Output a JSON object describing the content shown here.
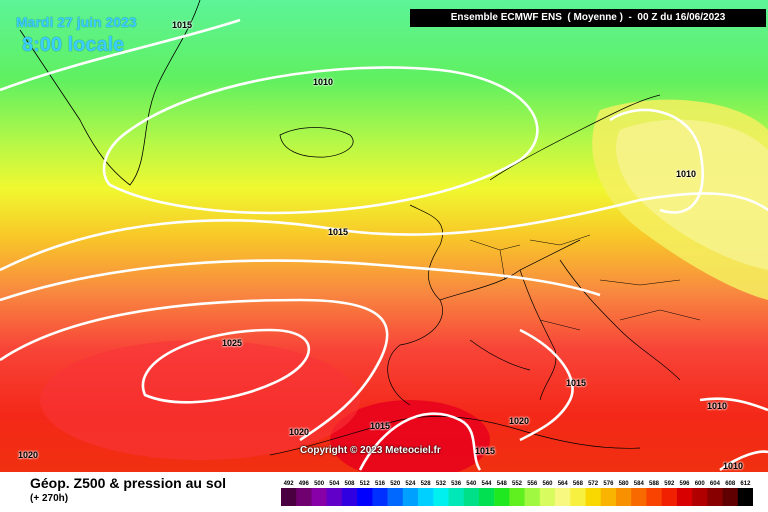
{
  "date_label": "Mardi 27 juin 2023",
  "time_label": "8:00 locale",
  "header": "Ensemble ECMWF ENS  ( Moyenne )  -  00 Z du 16/06/2023",
  "copyright": "Copyright © 2023 Meteociel.fr",
  "map_title": "Géop. Z500 & pression au sol",
  "lead_time": "(+ 270h)",
  "isobar_labels": [
    "1015",
    "1010",
    "1015",
    "1010",
    "1025",
    "1020",
    "1015",
    "1015",
    "1020",
    "1015",
    "1010",
    "1010",
    "1020"
  ],
  "legend": {
    "values": [
      "492",
      "496",
      "500",
      "504",
      "508",
      "512",
      "516",
      "520",
      "524",
      "528",
      "532",
      "536",
      "540",
      "544",
      "548",
      "552",
      "556",
      "560",
      "564",
      "568",
      "572",
      "576",
      "580",
      "584",
      "588",
      "592",
      "596",
      "600",
      "604",
      "608",
      "612"
    ],
    "colors": [
      "#4a0040",
      "#700070",
      "#8800a8",
      "#6000c8",
      "#3000e0",
      "#0000ff",
      "#0030ff",
      "#0068ff",
      "#00a0ff",
      "#00d0ff",
      "#00f0f0",
      "#00e8b8",
      "#00e088",
      "#00e050",
      "#20e820",
      "#60f020",
      "#a0f840",
      "#d8fc60",
      "#f8f880",
      "#f8f040",
      "#f8d800",
      "#f8b400",
      "#f89000",
      "#f86a00",
      "#f84400",
      "#f02000",
      "#d80000",
      "#b00000",
      "#880000",
      "#600000",
      "#000000"
    ]
  }
}
